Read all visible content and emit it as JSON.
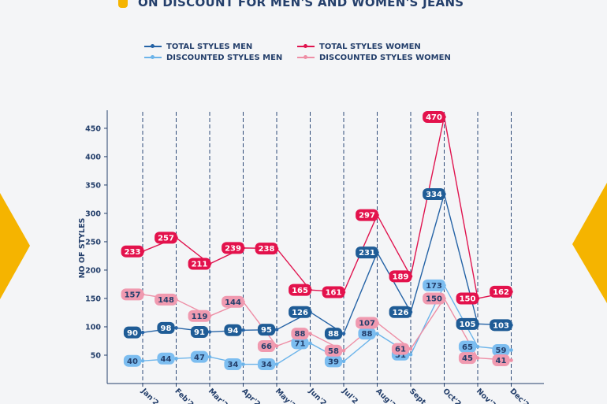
{
  "title": "ON DISCOUNT FOR MEN'S AND WOMEN'S JEANS",
  "chart_data": {
    "type": "line",
    "ylabel": "NO OF STYLES",
    "xlabel": "",
    "categories": [
      "Jan'2",
      "Feb'2",
      "Mar'2",
      "Apr'2",
      "May'2",
      "Jun'2",
      "Jul'2",
      "Aug'2",
      "Sept",
      "Oct'2",
      "Nov'2",
      "Dec'2"
    ],
    "y_ticks": [
      50,
      100,
      150,
      200,
      250,
      300,
      350,
      400,
      450
    ],
    "ylim": [
      0,
      490
    ],
    "grid": true,
    "legend_position": "top",
    "series": [
      {
        "name": "TOTAL STYLES MEN",
        "color": "#2563a6",
        "label_bg": "#1f5c96",
        "label_color": "#ffffff",
        "values": [
          90,
          98,
          91,
          94,
          95,
          126,
          88,
          231,
          126,
          334,
          105,
          103
        ]
      },
      {
        "name": "TOTAL STYLES WOMEN",
        "color": "#e0144f",
        "label_bg": "#e3124c",
        "label_color": "#ffffff",
        "values": [
          233,
          257,
          211,
          239,
          238,
          165,
          161,
          297,
          189,
          470,
          150,
          162
        ]
      },
      {
        "name": "DISCOUNTED STYLES MEN",
        "color": "#6cb4ea",
        "label_bg": "#7cbdf0",
        "label_color": "#243f6b",
        "values": [
          40,
          44,
          47,
          34,
          34,
          71,
          39,
          88,
          51,
          173,
          65,
          59
        ]
      },
      {
        "name": "DISCOUNTED STYLES WOMEN",
        "color": "#ee8fa6",
        "label_bg": "#f09ab0",
        "label_color": "#243f6b",
        "values": [
          157,
          148,
          119,
          144,
          66,
          88,
          58,
          107,
          61,
          150,
          45,
          41
        ]
      }
    ]
  }
}
